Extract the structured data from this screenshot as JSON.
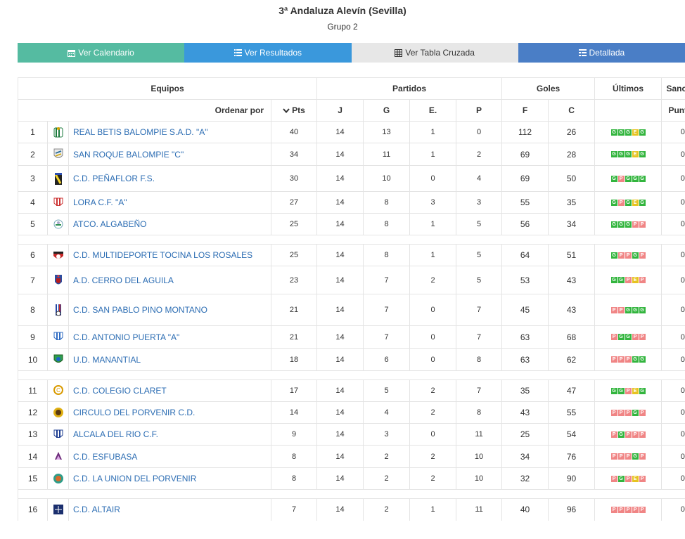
{
  "header": {
    "title": "3ª Andaluza Alevín (Sevilla)",
    "subtitle": "Grupo 2"
  },
  "buttons": [
    {
      "label": "Ver Calendario",
      "icon": "calendar-icon",
      "color": "#55bba1"
    },
    {
      "label": "Ver Resultados",
      "icon": "list-icon",
      "color": "#3a98dc"
    },
    {
      "label": "Ver Tabla Cruzada",
      "icon": "grid-icon",
      "color": "#e7e7e7"
    },
    {
      "label": "Detallada",
      "icon": "detail-list-icon",
      "color": "#4a7ec6"
    }
  ],
  "table": {
    "group_headers": {
      "equipos": "Equipos",
      "partidos": "Partidos",
      "goles": "Goles",
      "ultimos": "Últimos",
      "sancion": "Sanción"
    },
    "sub_headers": {
      "ordenar": "Ordenar por",
      "pts": "Pts",
      "j": "J",
      "g": "G",
      "e": "E.",
      "p": "P",
      "f": "F",
      "c": "C",
      "puntos": "Puntos"
    },
    "colors": {
      "win": "#33b53e",
      "draw": "#e6c321",
      "loss": "#f08585",
      "link": "#2c6db3"
    },
    "rows": [
      {
        "pos": "1",
        "team": "REAL BETIS BALOMPIE S.A.D. \"A\"",
        "pts": "40",
        "j": "14",
        "g": "13",
        "e": "1",
        "p": "0",
        "f": "112",
        "c": "26",
        "form": [
          "G",
          "G",
          "G",
          "E",
          "G"
        ],
        "sancion": "0",
        "logo": "betis"
      },
      {
        "pos": "2",
        "team": "SAN ROQUE BALOMPIE \"C\"",
        "pts": "34",
        "j": "14",
        "g": "11",
        "e": "1",
        "p": "2",
        "f": "69",
        "c": "28",
        "form": [
          "G",
          "G",
          "G",
          "E",
          "G"
        ],
        "sancion": "0",
        "logo": "sanroque"
      },
      {
        "pos": "3",
        "team": "C.D. PEÑAFLOR F.S.",
        "pts": "30",
        "j": "14",
        "g": "10",
        "e": "0",
        "p": "4",
        "f": "69",
        "c": "50",
        "form": [
          "G",
          "P",
          "G",
          "G",
          "G"
        ],
        "sancion": "0",
        "logo": "penaflor"
      },
      {
        "pos": "4",
        "team": "LORA C.F. \"A\"",
        "pts": "27",
        "j": "14",
        "g": "8",
        "e": "3",
        "p": "3",
        "f": "55",
        "c": "35",
        "form": [
          "G",
          "P",
          "G",
          "E",
          "G"
        ],
        "sancion": "0",
        "logo": "lora"
      },
      {
        "pos": "5",
        "team": "ATCO. ALGABEÑO",
        "pts": "25",
        "j": "14",
        "g": "8",
        "e": "1",
        "p": "5",
        "f": "56",
        "c": "34",
        "form": [
          "G",
          "G",
          "G",
          "P",
          "P"
        ],
        "sancion": "0",
        "logo": "algabeno"
      },
      {
        "pos": "6",
        "team": "C.D. MULTIDEPORTE TOCINA LOS ROSALES",
        "pts": "25",
        "j": "14",
        "g": "8",
        "e": "1",
        "p": "5",
        "f": "64",
        "c": "51",
        "form": [
          "G",
          "P",
          "P",
          "G",
          "P"
        ],
        "sancion": "0",
        "logo": "tocina"
      },
      {
        "pos": "7",
        "team": "A.D. CERRO DEL AGUILA",
        "pts": "23",
        "j": "14",
        "g": "7",
        "e": "2",
        "p": "5",
        "f": "53",
        "c": "43",
        "form": [
          "G",
          "G",
          "P",
          "E",
          "P"
        ],
        "sancion": "0",
        "logo": "cerro"
      },
      {
        "pos": "8",
        "team": "C.D. SAN PABLO PINO MONTANO",
        "pts": "21",
        "j": "14",
        "g": "7",
        "e": "0",
        "p": "7",
        "f": "45",
        "c": "43",
        "form": [
          "P",
          "P",
          "G",
          "G",
          "G"
        ],
        "sancion": "0",
        "logo": "sanpablo"
      },
      {
        "pos": "9",
        "team": "C.D. ANTONIO PUERTA \"A\"",
        "pts": "21",
        "j": "14",
        "g": "7",
        "e": "0",
        "p": "7",
        "f": "63",
        "c": "68",
        "form": [
          "P",
          "G",
          "G",
          "P",
          "P"
        ],
        "sancion": "0",
        "logo": "puerta"
      },
      {
        "pos": "10",
        "team": "U.D. MANANTIAL",
        "pts": "18",
        "j": "14",
        "g": "6",
        "e": "0",
        "p": "8",
        "f": "63",
        "c": "62",
        "form": [
          "P",
          "P",
          "P",
          "G",
          "G"
        ],
        "sancion": "0",
        "logo": "manantial"
      },
      {
        "pos": "11",
        "team": "C.D. COLEGIO CLARET",
        "pts": "17",
        "j": "14",
        "g": "5",
        "e": "2",
        "p": "7",
        "f": "35",
        "c": "47",
        "form": [
          "G",
          "G",
          "P",
          "E",
          "G"
        ],
        "sancion": "0",
        "logo": "claret"
      },
      {
        "pos": "12",
        "team": "CIRCULO DEL PORVENIR C.D.",
        "pts": "14",
        "j": "14",
        "g": "4",
        "e": "2",
        "p": "8",
        "f": "43",
        "c": "55",
        "form": [
          "P",
          "P",
          "P",
          "G",
          "P"
        ],
        "sancion": "0",
        "logo": "circulo"
      },
      {
        "pos": "13",
        "team": "ALCALA DEL RIO C.F.",
        "pts": "9",
        "j": "14",
        "g": "3",
        "e": "0",
        "p": "11",
        "f": "25",
        "c": "54",
        "form": [
          "P",
          "G",
          "P",
          "P",
          "P"
        ],
        "sancion": "0",
        "logo": "alcala"
      },
      {
        "pos": "14",
        "team": "C.D. ESFUBASA",
        "pts": "8",
        "j": "14",
        "g": "2",
        "e": "2",
        "p": "10",
        "f": "34",
        "c": "76",
        "form": [
          "P",
          "P",
          "P",
          "G",
          "P"
        ],
        "sancion": "0",
        "logo": "esfubasa"
      },
      {
        "pos": "15",
        "team": "C.D. LA UNION DEL PORVENIR",
        "pts": "8",
        "j": "14",
        "g": "2",
        "e": "2",
        "p": "10",
        "f": "32",
        "c": "90",
        "form": [
          "P",
          "G",
          "P",
          "E",
          "P"
        ],
        "sancion": "0",
        "logo": "union"
      },
      {
        "pos": "16",
        "team": "C.D. ALTAIR",
        "pts": "7",
        "j": "14",
        "g": "2",
        "e": "1",
        "p": "11",
        "f": "40",
        "c": "96",
        "form": [
          "P",
          "P",
          "P",
          "P",
          "P"
        ],
        "sancion": "0",
        "logo": "altair"
      }
    ]
  }
}
